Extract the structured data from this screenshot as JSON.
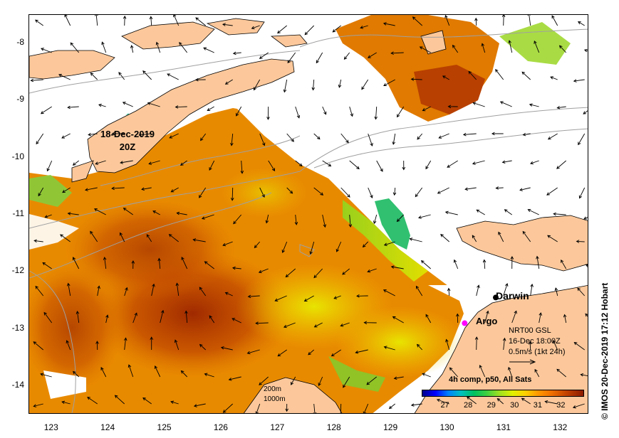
{
  "map": {
    "date_label_line1": "18-Dec-2019",
    "date_label_line2": "20Z",
    "y_axis_labels": [
      "-8",
      "-9",
      "-10",
      "-11",
      "-12",
      "-13",
      "-14"
    ],
    "x_axis_labels": [
      "123",
      "124",
      "125",
      "126",
      "127",
      "128",
      "129",
      "130",
      "131",
      "132"
    ],
    "lat_range": [
      -14.5,
      -7.5
    ],
    "lon_range": [
      122.6,
      132.5
    ],
    "places": [
      {
        "name": "Darwin",
        "lon": 130.85,
        "lat": -12.45,
        "marker_color": "#000000"
      },
      {
        "name": "Argo",
        "lon": 130.3,
        "lat": -12.9,
        "marker_color": "#ff00ff"
      }
    ],
    "colors": {
      "land": "#fcc89b",
      "no_data": "#ffffff",
      "contour": "#a0a0a0"
    }
  },
  "info": {
    "product": "NRT00 GSL",
    "time": "16-Dec 18:00Z",
    "scale": "0.5m/s (1kt 24h)"
  },
  "depth_legend": {
    "line1": "200m",
    "line2": "1000m"
  },
  "colorbar": {
    "title": "4h comp, p50, All Sats",
    "ticks": [
      "27",
      "28",
      "29",
      "30",
      "31",
      "32"
    ],
    "range": [
      26,
      33
    ]
  },
  "credit": "© IMOS 20-Dec-2019 17:12 Hobart"
}
